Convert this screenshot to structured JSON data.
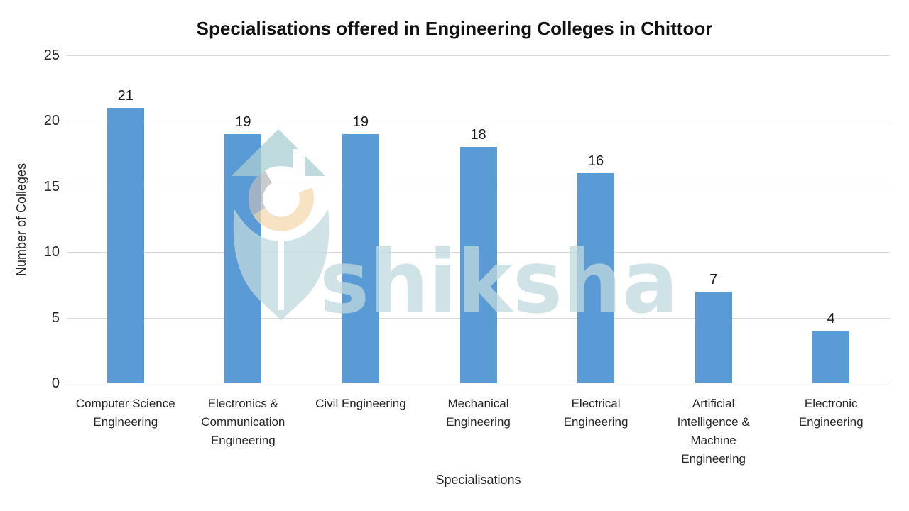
{
  "watermark": {
    "text": "shiksha"
  },
  "colors": {
    "bar": "#5b9bd5",
    "gridline": "#d9d9d9",
    "axis_line": "#bfbfbf",
    "title_text": "#111111",
    "label_text": "#262626",
    "watermark_teal": "#bfd9dd",
    "watermark_roof": "#a9ced2",
    "watermark_gray_arc": "#b7bbbf",
    "watermark_peach_arc": "#f5d9b0"
  },
  "chart_data": {
    "type": "bar",
    "title": "Specialisations offered in Engineering Colleges in Chittoor",
    "xlabel": "Specialisations",
    "ylabel": "Number of Colleges",
    "categories": [
      "Computer Science Engineering",
      "Electronics & Communication Engineering",
      "Civil Engineering",
      "Mechanical Engineering",
      "Electrical Engineering",
      "Artificial Intelligence & Machine Engineering",
      "Electronic Engineering"
    ],
    "values": [
      21,
      19,
      19,
      18,
      16,
      7,
      4
    ],
    "data_labels": true,
    "ylim": [
      0,
      25
    ],
    "yticks": [
      0,
      5,
      10,
      15,
      20,
      25
    ],
    "grid": "horizontal",
    "legend": "none",
    "bar_color": "#5b9bd5"
  }
}
